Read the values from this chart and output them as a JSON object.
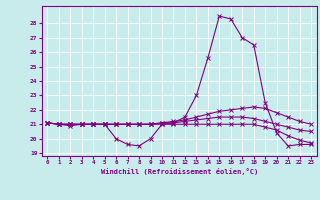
{
  "xlabel": "Windchill (Refroidissement éolien,°C)",
  "background_color": "#c8ecec",
  "line_color": "#800080",
  "grid_color": "#ffffff",
  "xlim": [
    -0.5,
    23.5
  ],
  "ylim": [
    18.8,
    29.2
  ],
  "yticks": [
    19,
    20,
    21,
    22,
    23,
    24,
    25,
    26,
    27,
    28
  ],
  "xticks": [
    0,
    1,
    2,
    3,
    4,
    5,
    6,
    7,
    8,
    9,
    10,
    11,
    12,
    13,
    14,
    15,
    16,
    17,
    18,
    19,
    20,
    21,
    22,
    23
  ],
  "series": [
    {
      "x": [
        0,
        1,
        2,
        3,
        4,
        5,
        6,
        7,
        8,
        9,
        10,
        11,
        12,
        13,
        14,
        15,
        16,
        17,
        18,
        19,
        20,
        21,
        22,
        23
      ],
      "y": [
        21.1,
        21.0,
        20.9,
        21.0,
        21.0,
        21.0,
        20.0,
        19.6,
        19.5,
        20.0,
        21.0,
        21.1,
        21.5,
        23.0,
        25.6,
        28.5,
        28.3,
        27.0,
        26.5,
        22.5,
        20.4,
        19.5,
        19.6,
        19.6
      ]
    },
    {
      "x": [
        0,
        1,
        2,
        3,
        4,
        5,
        6,
        7,
        8,
        9,
        10,
        11,
        12,
        13,
        14,
        15,
        16,
        17,
        18,
        19,
        20,
        21,
        22,
        23
      ],
      "y": [
        21.1,
        21.0,
        21.0,
        21.0,
        21.0,
        21.0,
        21.0,
        21.0,
        21.0,
        21.0,
        21.1,
        21.2,
        21.3,
        21.5,
        21.7,
        21.9,
        22.0,
        22.1,
        22.2,
        22.1,
        21.8,
        21.5,
        21.2,
        21.0
      ]
    },
    {
      "x": [
        0,
        1,
        2,
        3,
        4,
        5,
        6,
        7,
        8,
        9,
        10,
        11,
        12,
        13,
        14,
        15,
        16,
        17,
        18,
        19,
        20,
        21,
        22,
        23
      ],
      "y": [
        21.1,
        21.0,
        21.0,
        21.0,
        21.0,
        21.0,
        21.0,
        21.0,
        21.0,
        21.0,
        21.1,
        21.1,
        21.2,
        21.3,
        21.4,
        21.5,
        21.5,
        21.5,
        21.4,
        21.2,
        21.0,
        20.8,
        20.6,
        20.5
      ]
    },
    {
      "x": [
        0,
        1,
        2,
        3,
        4,
        5,
        6,
        7,
        8,
        9,
        10,
        11,
        12,
        13,
        14,
        15,
        16,
        17,
        18,
        19,
        20,
        21,
        22,
        23
      ],
      "y": [
        21.1,
        21.0,
        21.0,
        21.0,
        21.0,
        21.0,
        21.0,
        21.0,
        21.0,
        21.0,
        21.0,
        21.0,
        21.0,
        21.0,
        21.0,
        21.0,
        21.0,
        21.0,
        21.0,
        20.8,
        20.6,
        20.2,
        19.9,
        19.7
      ]
    }
  ]
}
